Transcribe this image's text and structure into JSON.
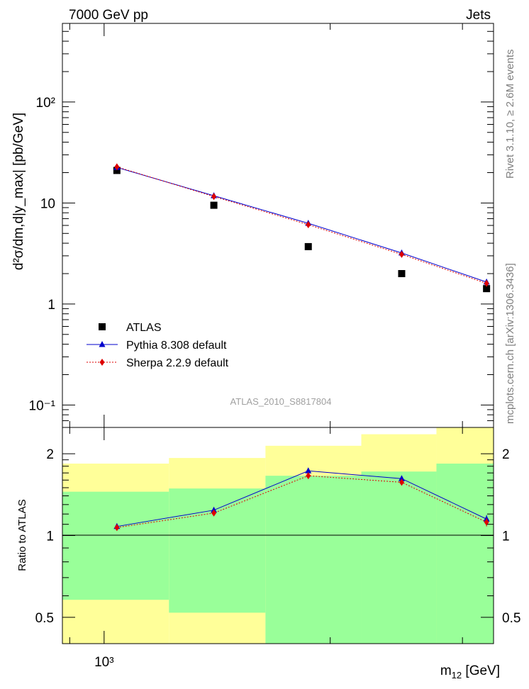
{
  "header": {
    "energy_label": "7000 GeV pp",
    "process_label": "Jets",
    "side_label_top": "Rivet 3.1.10, ≥ 2.6M events",
    "side_label_bottom": "mcplots.cern.ch [arXiv:1306.3436]",
    "analysis_id": "ATLAS_2010_S8817804"
  },
  "chart_data": [
    {
      "type": "scatter",
      "panel": "main",
      "ylabel": "d²σ/dm,d|y_max| [pb/GeV]",
      "xlabel": "m12 [GeV]",
      "x_scale": "log",
      "y_scale": "log",
      "xlim": [
        880,
        3300
      ],
      "ylim": [
        0.06,
        600
      ],
      "x_tick_labels": [
        "10³"
      ],
      "y_tick_labels": [
        "10⁻¹",
        "1",
        "10",
        "10²"
      ],
      "x": [
        1040,
        1400,
        1870,
        2490,
        3230
      ],
      "series": [
        {
          "name": "ATLAS",
          "values": [
            21,
            9.5,
            3.7,
            2.0,
            1.42
          ],
          "color": "#000000",
          "marker": "square"
        },
        {
          "name": "Pythia 8.308 default",
          "values": [
            22.5,
            11.8,
            6.3,
            3.2,
            1.65
          ],
          "color": "#0000cc",
          "marker": "triangle"
        },
        {
          "name": "Sherpa 2.2.9 default",
          "values": [
            22.8,
            11.6,
            6.1,
            3.1,
            1.6
          ],
          "color": "#dd0000",
          "marker": "diamond"
        }
      ],
      "legend": "bottom-left"
    },
    {
      "type": "line",
      "panel": "ratio",
      "ylabel": "Ratio to ATLAS",
      "xlabel": "m12 [GeV]",
      "y_scale": "log",
      "ylim": [
        0.4,
        2.5
      ],
      "y_tick_labels": [
        "0.5",
        "1",
        "2"
      ],
      "x": [
        1040,
        1400,
        1870,
        2490,
        3230
      ],
      "series": [
        {
          "name": "Pythia 8.308 default",
          "values": [
            1.08,
            1.24,
            1.73,
            1.62,
            1.15
          ],
          "errors": [
            0.01,
            0.01,
            0.02,
            0.04,
            0.04
          ],
          "color": "#0000cc"
        },
        {
          "name": "Sherpa 2.2.9 default",
          "values": [
            1.07,
            1.21,
            1.66,
            1.57,
            1.12
          ],
          "errors": [
            0.01,
            0.01,
            0.02,
            0.03,
            0.04
          ],
          "color": "#dd0000"
        }
      ],
      "bands": [
        {
          "x_low": 880,
          "x_high": 1220,
          "green": [
            0.58,
            1.45
          ],
          "yellow": [
            0.4,
            1.84
          ]
        },
        {
          "x_low": 1220,
          "x_high": 1640,
          "green": [
            0.52,
            1.49
          ],
          "yellow": [
            0.4,
            1.93
          ]
        },
        {
          "x_low": 1640,
          "x_high": 2200,
          "green": [
            0.4,
            1.66
          ],
          "yellow": [
            0.4,
            2.14
          ]
        },
        {
          "x_low": 2200,
          "x_high": 2770,
          "green": [
            0.4,
            1.72
          ],
          "yellow": [
            0.4,
            2.36
          ]
        },
        {
          "x_low": 2770,
          "x_high": 3300,
          "green": [
            0.4,
            1.84
          ],
          "yellow": [
            0.4,
            2.5
          ]
        }
      ],
      "band_colors": {
        "green": "#99ff99",
        "yellow": "#ffff99"
      }
    }
  ]
}
